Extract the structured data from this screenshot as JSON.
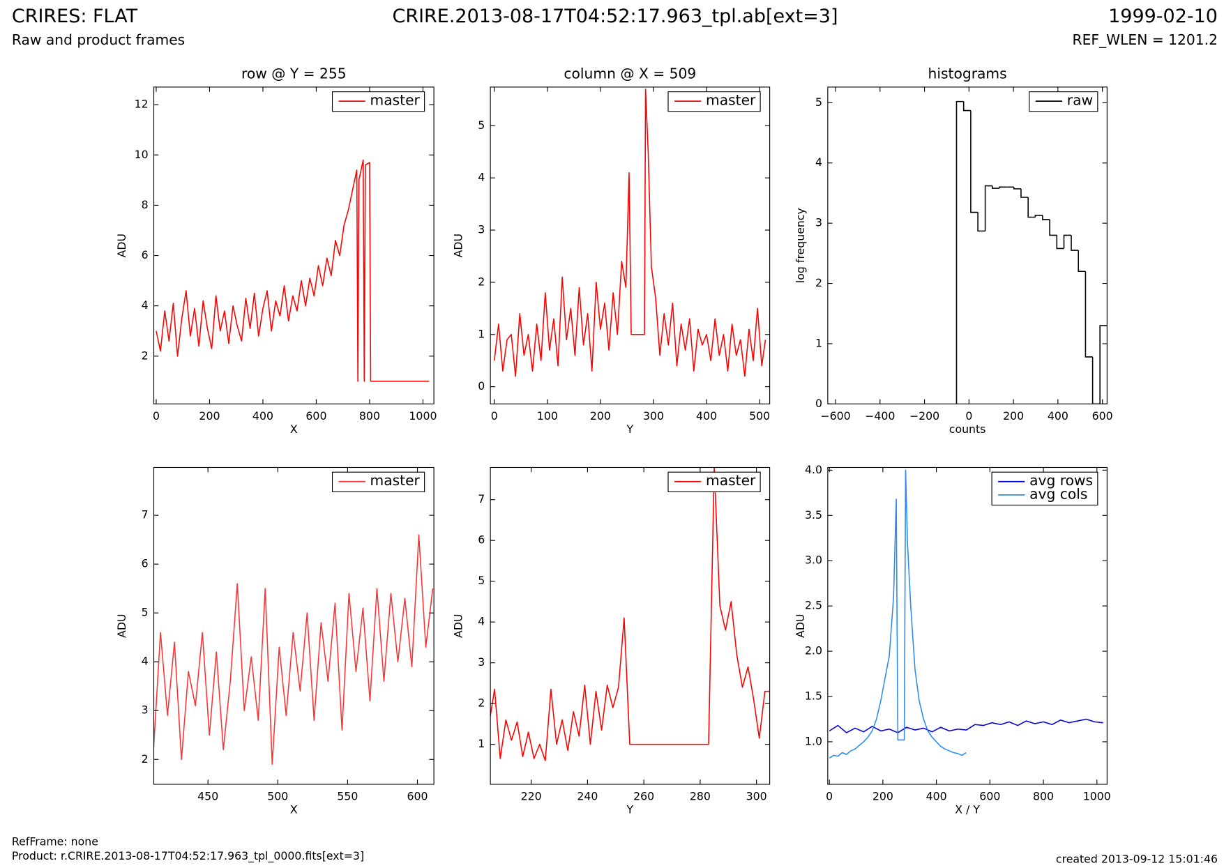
{
  "header": {
    "title": "CRIRES: FLAT",
    "subtitle": "Raw and product frames",
    "file": "CRIRE.2013-08-17T04:52:17.963_tpl.ab[ext=3]",
    "date": "1999-02-10",
    "ref_wlen": "REF_WLEN = 1201.2"
  },
  "footer": {
    "ref_frame": "RefFrame: none",
    "product": "Product: r.CRIRE.2013-08-17T04:52:17.963_tpl_0000.fits[ext=3]",
    "created": "created 2013-09-12 15:01:46"
  },
  "chart_data": [
    {
      "type": "line",
      "title": "row @ Y = 255",
      "x_label": "X",
      "y_label": "ADU",
      "legend": "upper right",
      "xlim": [
        -9,
        1041
      ],
      "ylim": [
        0.1,
        12.7
      ],
      "xticks": [
        0,
        200,
        400,
        600,
        800,
        1000
      ],
      "yticks": [
        2,
        4,
        6,
        8,
        10,
        12
      ],
      "series": [
        {
          "name": "master",
          "color": "#ff0000",
          "x": [
            0,
            16,
            32,
            48,
            64,
            80,
            96,
            112,
            128,
            144,
            160,
            176,
            192,
            208,
            224,
            240,
            256,
            272,
            288,
            304,
            320,
            336,
            352,
            368,
            384,
            400,
            416,
            432,
            448,
            464,
            480,
            496,
            512,
            528,
            544,
            560,
            576,
            592,
            608,
            624,
            640,
            656,
            672,
            688,
            704,
            720,
            736,
            752,
            756,
            760,
            776,
            780,
            784,
            800,
            804,
            816,
            900,
            1023
          ],
          "values": [
            3.0,
            2.2,
            3.8,
            2.6,
            4.1,
            2.0,
            3.5,
            4.6,
            2.8,
            3.9,
            2.4,
            4.2,
            3.1,
            2.3,
            4.4,
            3.0,
            3.8,
            2.5,
            4.0,
            3.2,
            2.6,
            4.3,
            3.1,
            4.5,
            2.8,
            3.9,
            4.6,
            3.0,
            4.2,
            3.6,
            4.8,
            3.4,
            4.4,
            3.8,
            5.0,
            4.0,
            5.1,
            4.4,
            5.6,
            4.8,
            5.9,
            5.2,
            6.6,
            6.0,
            7.2,
            7.8,
            8.6,
            9.4,
            1.0,
            9.0,
            9.8,
            1.0,
            9.6,
            9.7,
            1.0,
            1.0,
            1.0,
            1.0
          ]
        }
      ]
    },
    {
      "type": "line",
      "title": "column @ X = 509",
      "x_label": "Y",
      "y_label": "ADU",
      "legend": "upper right",
      "xlim": [
        -7.4,
        519
      ],
      "ylim": [
        -0.33,
        5.74
      ],
      "xticks": [
        0,
        100,
        200,
        300,
        400,
        500
      ],
      "yticks": [
        0,
        1,
        2,
        3,
        4,
        5
      ],
      "series": [
        {
          "name": "master",
          "color": "#ff0000",
          "x": [
            0,
            8,
            16,
            24,
            32,
            40,
            48,
            56,
            64,
            72,
            80,
            88,
            96,
            104,
            112,
            120,
            128,
            136,
            144,
            152,
            160,
            168,
            176,
            184,
            192,
            200,
            208,
            216,
            224,
            232,
            240,
            248,
            254,
            258,
            283,
            285,
            290,
            296,
            304,
            312,
            320,
            328,
            336,
            344,
            352,
            360,
            368,
            376,
            384,
            392,
            400,
            408,
            416,
            424,
            432,
            440,
            448,
            456,
            464,
            472,
            480,
            488,
            496,
            504,
            511
          ],
          "values": [
            0.5,
            1.2,
            0.3,
            0.9,
            1.0,
            0.2,
            1.4,
            0.6,
            1.0,
            0.3,
            1.2,
            0.5,
            1.8,
            0.7,
            1.3,
            0.4,
            2.1,
            0.9,
            1.5,
            0.6,
            1.9,
            0.8,
            1.4,
            0.3,
            2.0,
            1.1,
            1.6,
            0.7,
            1.8,
            1.0,
            2.4,
            1.9,
            4.1,
            1.0,
            1.0,
            5.7,
            4.5,
            2.3,
            1.7,
            0.6,
            1.4,
            0.8,
            1.6,
            0.4,
            1.2,
            0.7,
            1.3,
            0.3,
            1.1,
            0.8,
            1.0,
            0.5,
            1.3,
            0.6,
            1.0,
            0.3,
            1.2,
            0.6,
            0.9,
            0.2,
            1.1,
            0.5,
            1.5,
            0.4,
            0.9
          ]
        }
      ]
    },
    {
      "type": "histogram",
      "title": "histograms",
      "x_label": "counts",
      "y_label": "log frequency",
      "legend": "upper right",
      "xlim": [
        -635,
        621
      ],
      "ylim": [
        0,
        5.26
      ],
      "xticks": [
        {
          "value": -600,
          "label": "−600"
        },
        {
          "value": -400,
          "label": "−400"
        },
        {
          "value": -200,
          "label": "−200"
        },
        0,
        200,
        400,
        600
      ],
      "yticks": [
        0,
        1,
        2,
        3,
        4,
        5
      ],
      "bins": [
        -56,
        -24,
        8,
        40,
        73,
        105,
        137,
        169,
        202,
        234,
        266,
        298,
        331,
        363,
        395,
        427,
        460,
        492,
        524,
        556,
        589,
        621
      ],
      "series": [
        {
          "name": "raw",
          "color": "#000000",
          "values": [
            5.02,
            4.87,
            3.18,
            2.87,
            3.62,
            3.58,
            3.6,
            3.6,
            3.57,
            3.43,
            3.1,
            3.13,
            3.06,
            2.8,
            2.58,
            2.8,
            2.55,
            2.2,
            0.78,
            0,
            1.3
          ]
        }
      ]
    },
    {
      "type": "line",
      "x_label": "X",
      "y_label": "ADU",
      "legend": "upper right",
      "xlim": [
        411.2,
        611.8
      ],
      "ylim": [
        1.49,
        7.98
      ],
      "xticks": [
        450,
        500,
        550,
        600
      ],
      "yticks": [
        2,
        3,
        4,
        5,
        6,
        7
      ],
      "series": [
        {
          "name": "master",
          "color": "#ff3333",
          "x": [
            411,
            416,
            421,
            426,
            431,
            436,
            441,
            446,
            451,
            456,
            461,
            466,
            471,
            476,
            481,
            486,
            491,
            496,
            501,
            506,
            511,
            516,
            521,
            526,
            531,
            536,
            541,
            546,
            551,
            556,
            561,
            566,
            571,
            576,
            581,
            586,
            591,
            596,
            601,
            606,
            611
          ],
          "values": [
            2.2,
            4.6,
            2.9,
            4.4,
            2.0,
            3.8,
            3.1,
            4.6,
            2.5,
            4.2,
            2.2,
            3.6,
            5.6,
            3.0,
            4.1,
            2.8,
            5.5,
            1.9,
            4.3,
            2.9,
            4.6,
            3.4,
            5.0,
            2.8,
            4.8,
            3.6,
            5.2,
            2.6,
            5.4,
            3.8,
            5.1,
            3.2,
            5.5,
            3.6,
            5.4,
            4.0,
            5.3,
            3.9,
            6.6,
            4.3,
            5.5
          ]
        }
      ]
    },
    {
      "type": "line",
      "x_label": "Y",
      "y_label": "ADU",
      "legend": "upper right",
      "xlim": [
        205.5,
        304.7
      ],
      "ylim": [
        0.02,
        7.79
      ],
      "xticks": [
        220,
        240,
        260,
        280,
        300
      ],
      "yticks": [
        1,
        2,
        3,
        4,
        5,
        6,
        7
      ],
      "series": [
        {
          "name": "master",
          "color": "#ff0000",
          "x": [
            205,
            207,
            209,
            211,
            213,
            215,
            217,
            219,
            221,
            223,
            225,
            227,
            229,
            231,
            233,
            235,
            237,
            239,
            241,
            243,
            245,
            247,
            249,
            251,
            253,
            255,
            283,
            285,
            287,
            289,
            291,
            293,
            295,
            297,
            299,
            301,
            303,
            305
          ],
          "values": [
            1.5,
            2.35,
            0.65,
            1.6,
            1.1,
            1.55,
            0.7,
            1.3,
            0.65,
            1.0,
            0.6,
            2.35,
            1.0,
            1.6,
            0.85,
            1.8,
            1.2,
            2.45,
            1.0,
            2.3,
            1.35,
            2.45,
            1.9,
            2.4,
            4.1,
            1.0,
            1.0,
            7.8,
            4.4,
            3.8,
            4.5,
            3.2,
            2.4,
            2.9,
            2.1,
            1.15,
            2.3,
            2.3
          ]
        }
      ]
    },
    {
      "type": "line",
      "x_label": "X / Y",
      "y_label": "ADU",
      "legend": "upper right",
      "xlim": [
        -6,
        1038
      ],
      "ylim": [
        0.53,
        4.03
      ],
      "xticks": [
        0,
        200,
        400,
        600,
        800,
        1000
      ],
      "yticks": [
        {
          "value": 1,
          "label": "1.0"
        },
        1.5,
        {
          "value": 2,
          "label": "2.0"
        },
        2.5,
        {
          "value": 3,
          "label": "3.0"
        },
        3.5,
        {
          "value": 4,
          "label": "4.0"
        }
      ],
      "series": [
        {
          "name": "avg rows",
          "color": "#0000dd",
          "x": [
            0,
            32,
            64,
            96,
            128,
            160,
            192,
            224,
            256,
            288,
            320,
            352,
            384,
            416,
            448,
            480,
            512,
            544,
            576,
            608,
            640,
            672,
            704,
            736,
            768,
            800,
            832,
            864,
            896,
            928,
            960,
            992,
            1023
          ],
          "values": [
            1.12,
            1.18,
            1.1,
            1.15,
            1.11,
            1.17,
            1.12,
            1.14,
            1.1,
            1.16,
            1.13,
            1.15,
            1.11,
            1.16,
            1.12,
            1.14,
            1.13,
            1.19,
            1.18,
            1.21,
            1.19,
            1.22,
            1.18,
            1.23,
            1.2,
            1.22,
            1.19,
            1.24,
            1.21,
            1.23,
            1.25,
            1.22,
            1.21
          ]
        },
        {
          "name": "avg cols",
          "color": "#2a8cf0",
          "x": [
            0,
            16,
            32,
            48,
            64,
            80,
            96,
            112,
            128,
            144,
            160,
            176,
            192,
            208,
            224,
            240,
            250,
            256,
            280,
            285,
            292,
            304,
            320,
            336,
            352,
            368,
            384,
            400,
            416,
            432,
            448,
            464,
            480,
            496,
            511
          ],
          "values": [
            0.82,
            0.85,
            0.84,
            0.88,
            0.86,
            0.9,
            0.92,
            0.96,
            1.0,
            1.05,
            1.12,
            1.25,
            1.45,
            1.7,
            1.95,
            2.6,
            3.68,
            1.02,
            1.02,
            4.0,
            3.2,
            2.5,
            1.8,
            1.45,
            1.25,
            1.12,
            1.05,
            1.0,
            0.95,
            0.92,
            0.9,
            0.88,
            0.87,
            0.85,
            0.88
          ]
        }
      ]
    }
  ]
}
